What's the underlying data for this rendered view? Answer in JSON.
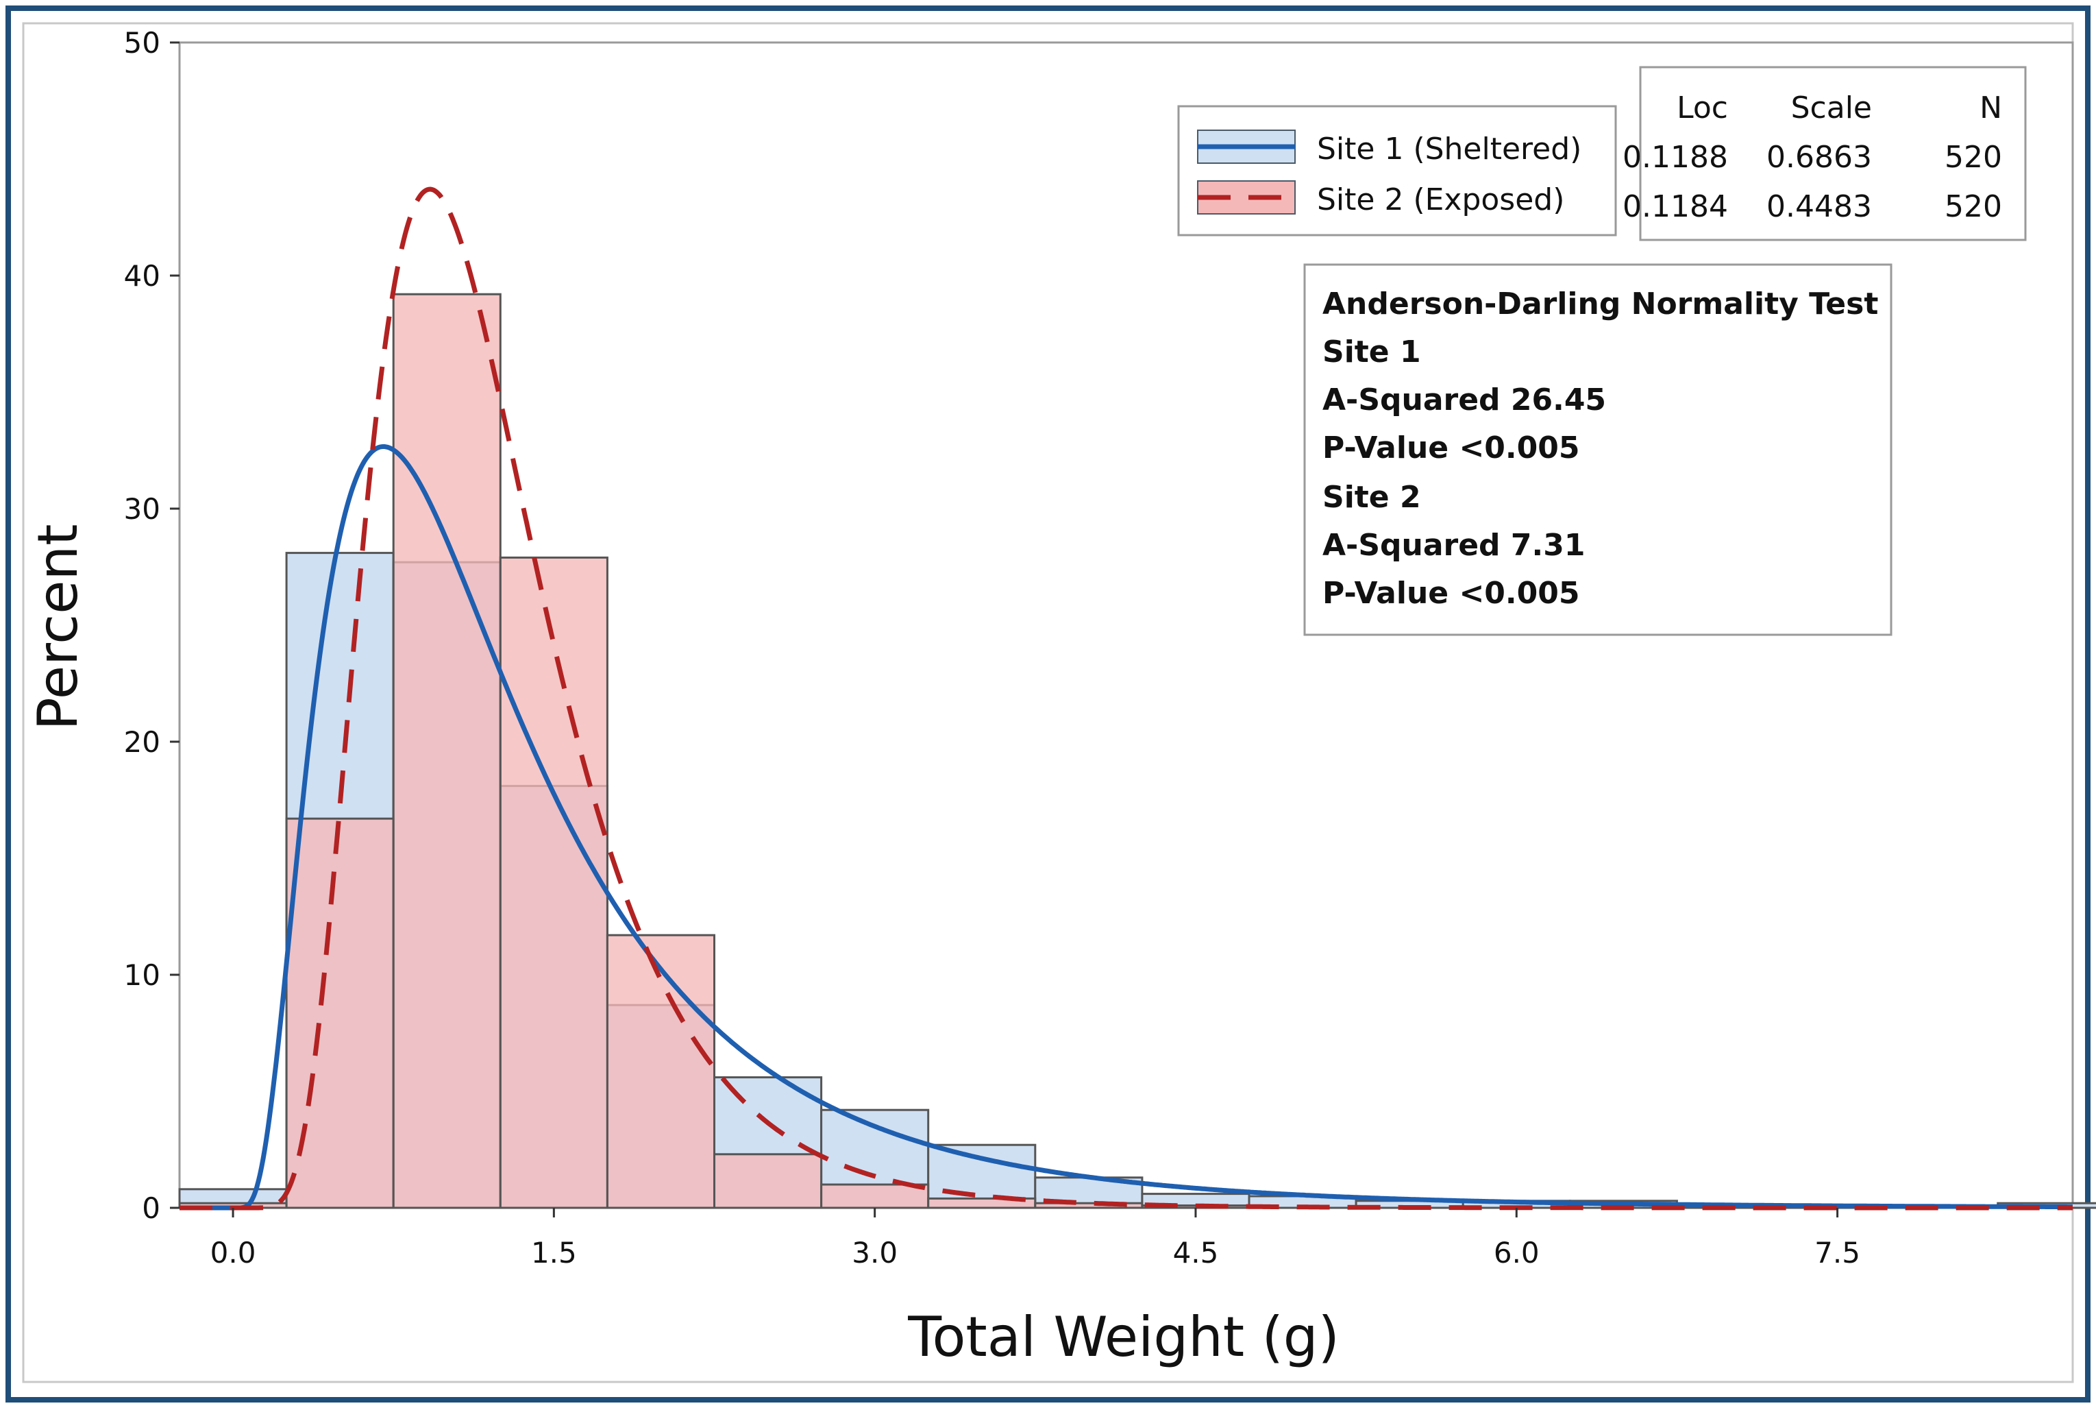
{
  "chart_data": {
    "type": "histogram",
    "xlabel": "Total Weight (g)",
    "ylabel": "Percent",
    "xlim": [
      -0.25,
      8.6
    ],
    "ylim": [
      0,
      50
    ],
    "x_ticks": [
      "0.0",
      "1.5",
      "3.0",
      "4.5",
      "6.0",
      "7.5"
    ],
    "x_tick_values": [
      0.0,
      1.5,
      3.0,
      4.5,
      6.0,
      7.5
    ],
    "y_ticks": [
      "0",
      "10",
      "20",
      "30",
      "40",
      "50"
    ],
    "y_tick_values": [
      0,
      10,
      20,
      30,
      40,
      50
    ],
    "bin_edges": [
      -0.25,
      0.25,
      0.75,
      1.25,
      1.75,
      2.25,
      2.75,
      3.25,
      3.75,
      4.25,
      4.75,
      5.25,
      5.75,
      6.25,
      6.75,
      7.25,
      7.75,
      8.25,
      8.75
    ],
    "series": [
      {
        "name": "Site 1 (Sheltered)",
        "fit": "lognormal",
        "line_style": "solid",
        "color": "#1f5fb0",
        "fill": "#cfe0f3",
        "values": [
          0.8,
          28.1,
          27.7,
          18.1,
          8.7,
          5.6,
          4.2,
          2.7,
          1.3,
          0.6,
          0.5,
          0.3,
          0.3,
          0.3,
          0.1,
          0.1,
          0.1,
          0.2
        ],
        "loc": 0.1188,
        "scale": 0.6863,
        "n": 520
      },
      {
        "name": "Site 2 (Exposed)",
        "fit": "lognormal",
        "line_style": "dashed",
        "color": "#b22222",
        "fill": "#f5b8b8",
        "values": [
          0.2,
          16.7,
          39.2,
          27.9,
          11.7,
          2.3,
          1.0,
          0.4,
          0.2,
          0.1,
          0.0,
          0.0,
          0.0,
          0.0,
          0.0,
          0.0,
          0.0,
          0.0
        ],
        "loc": 0.1184,
        "scale": 0.4483,
        "n": 520
      }
    ],
    "legend": {
      "placement": "top-right",
      "entries": [
        "Site 1 (Sheltered)",
        "Site 2 (Exposed)"
      ]
    },
    "stats_table": {
      "headers": [
        "Loc",
        "Scale",
        "N"
      ],
      "rows": [
        [
          "0.1188",
          "0.6863",
          "520"
        ],
        [
          "0.1184",
          "0.4483",
          "520"
        ]
      ]
    },
    "annotation": {
      "lines": [
        "Anderson-Darling Normality Test",
        "Site 1",
        "A-Squared 26.45",
        "P-Value <0.005",
        "Site 2",
        "A-Squared 7.31",
        "P-Value <0.005"
      ]
    },
    "grid": false
  }
}
